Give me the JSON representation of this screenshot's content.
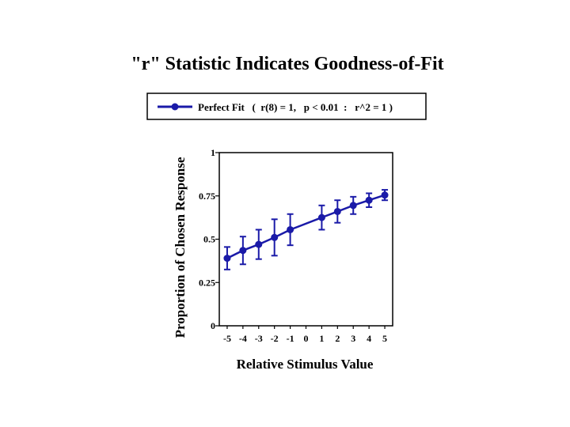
{
  "chart_data": {
    "type": "line",
    "title": "\"r\" Statistic Indicates Goodness-of-Fit",
    "xlabel": "Relative Stimulus Value",
    "ylabel": "Proportion of Chosen Response",
    "x_ticks": [
      "-5",
      "-4",
      "-3",
      "-2",
      "-1",
      "0",
      "1",
      "2",
      "3",
      "4",
      "5"
    ],
    "y_ticks": [
      "0",
      "0.25",
      "0.5",
      "0.75",
      "1"
    ],
    "y_tick_values": [
      0,
      0.25,
      0.5,
      0.75,
      1
    ],
    "xlim": [
      -5.5,
      5.5
    ],
    "ylim": [
      0,
      1
    ],
    "legend": {
      "label": "Perfect Fit   (  r(8) = 1,   p < 0.01  :   r^2 = 1 )",
      "position": "top"
    },
    "series": [
      {
        "name": "Perfect Fit",
        "color": "#1a1aa8",
        "x": [
          -5,
          -4,
          -3,
          -2,
          -1,
          1,
          2,
          3,
          4,
          5
        ],
        "y": [
          0.39,
          0.435,
          0.47,
          0.51,
          0.555,
          0.625,
          0.66,
          0.695,
          0.725,
          0.755
        ],
        "error": [
          0.065,
          0.08,
          0.085,
          0.105,
          0.09,
          0.07,
          0.065,
          0.05,
          0.04,
          0.03
        ]
      }
    ]
  }
}
